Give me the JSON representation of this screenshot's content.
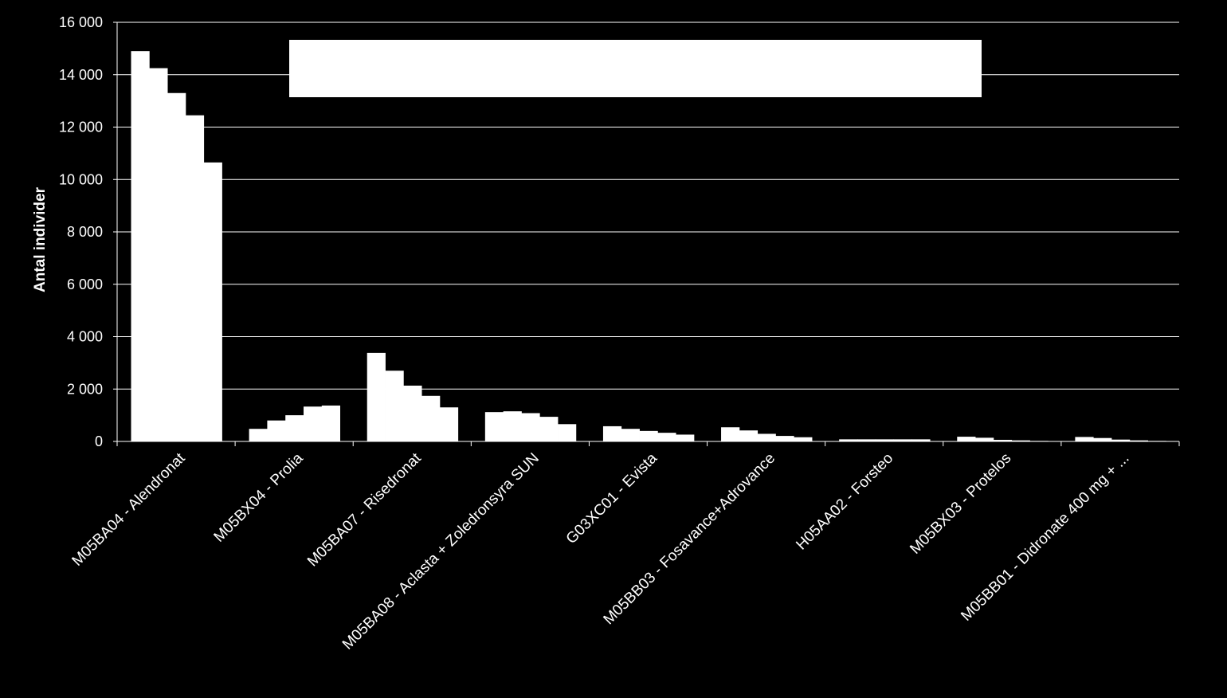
{
  "colors": {
    "background": "#000000",
    "bars": "#ffffff",
    "gridlines": "#ffffff",
    "text": "#ffffff",
    "legend_box": "#ffffff"
  },
  "chart_data": {
    "type": "bar",
    "ylabel": "Antal individer",
    "xlabel": "",
    "ylim": [
      0,
      16000
    ],
    "yticks": [
      0,
      2000,
      4000,
      6000,
      8000,
      10000,
      12000,
      14000,
      16000
    ],
    "ytick_labels": [
      "0",
      "2 000",
      "4 000",
      "6 000",
      "8 000",
      "10 000",
      "12 000",
      "14 000",
      "16 000"
    ],
    "grid": true,
    "legend": "top-center box (content not visible)",
    "bars_per_group": 5,
    "categories": [
      "M05BA04  - Alendronat",
      "M05BX04  - Prolia",
      "M05BA07  - Risedronat",
      "M05BA08  - Aclasta + Zoledronsyra SUN",
      "G03XC01  - Evista",
      "M05BB03  - Fosavance+Adrovance",
      "H05AA02  - Forsteo",
      "M05BX03  - Protelos",
      "M05BB01 - Didronate 400 mg + ..."
    ],
    "values": [
      [
        14900,
        14250,
        13300,
        12450,
        10650
      ],
      [
        480,
        800,
        1000,
        1330,
        1370
      ],
      [
        3380,
        2700,
        2130,
        1740,
        1300
      ],
      [
        1120,
        1150,
        1080,
        940,
        660
      ],
      [
        580,
        480,
        400,
        330,
        260
      ],
      [
        540,
        420,
        290,
        210,
        160
      ],
      [
        80,
        80,
        80,
        80,
        80
      ],
      [
        180,
        140,
        60,
        40,
        20
      ],
      [
        170,
        130,
        70,
        40,
        20
      ]
    ]
  }
}
